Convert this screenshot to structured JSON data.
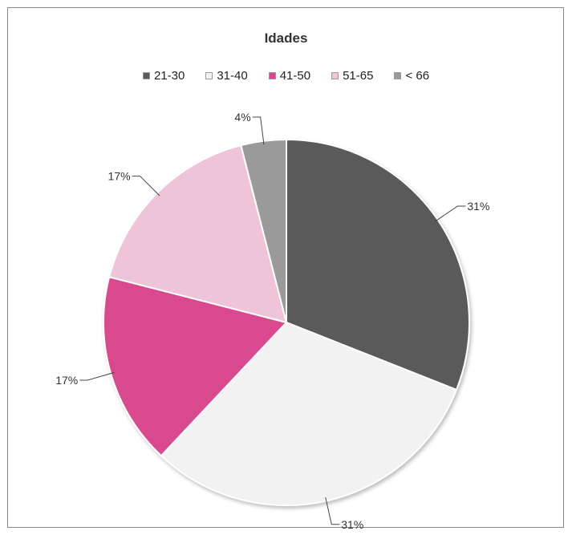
{
  "chart_data": {
    "type": "pie",
    "title": "Idades",
    "categories": [
      "21-30",
      "31-40",
      "41-50",
      "51-65",
      "< 66"
    ],
    "values": [
      31,
      31,
      17,
      17,
      4
    ],
    "data_labels": [
      "31%",
      "31%",
      "17%",
      "17%",
      "4%"
    ],
    "colors": [
      "#5a5a5a",
      "#f2f2f2",
      "#d9488e",
      "#f0c4d8",
      "#9a9a9a"
    ],
    "legend_position": "top",
    "start_angle_deg": 0,
    "direction": "clockwise"
  }
}
